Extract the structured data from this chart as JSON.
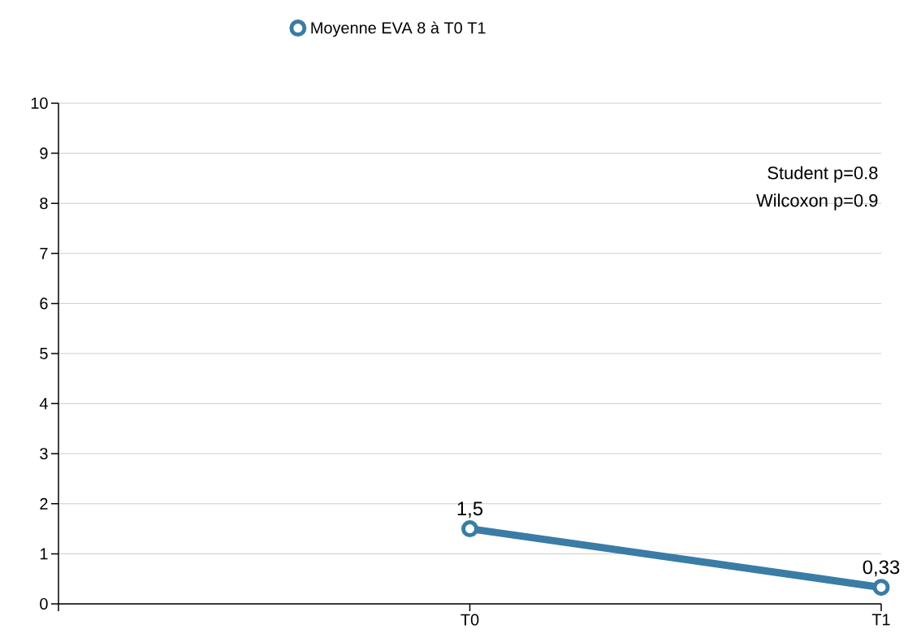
{
  "chart_data": {
    "type": "line",
    "categories": [
      null,
      "T0",
      "T1"
    ],
    "series": [
      {
        "name": "Moyenne EVA 8 à T0 T1",
        "color": "#3a7ca5",
        "values": [
          null,
          1.5,
          0.33
        ],
        "value_labels": [
          null,
          "1,5",
          "0,33"
        ]
      }
    ],
    "ylim": [
      0,
      10
    ],
    "yticks": [
      0,
      1,
      2,
      3,
      4,
      5,
      6,
      7,
      8,
      9,
      10
    ],
    "grid": "y",
    "legend": "top",
    "marker": "circle",
    "line_style": "solid",
    "annotations": [
      "Student p=0.8",
      "Wilcoxon p=0.9"
    ]
  }
}
